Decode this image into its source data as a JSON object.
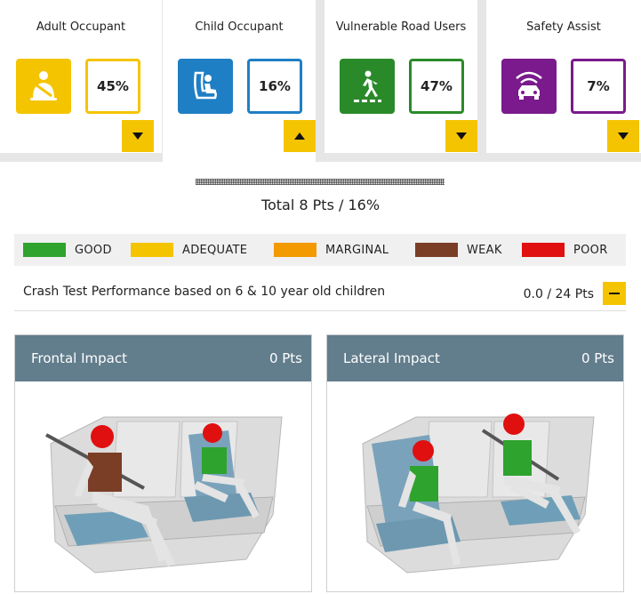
{
  "cards": [
    {
      "title": "Adult Occupant",
      "percent": "45%",
      "color": "#f5c400",
      "icon": "seatbelt-adult-icon",
      "toggle": "expand"
    },
    {
      "title": "Child Occupant",
      "percent": "16%",
      "color": "#1f7fc4",
      "icon": "child-seat-icon",
      "toggle": "collapse"
    },
    {
      "title": "Vulnerable Road Users",
      "percent": "47%",
      "color": "#2a8a2a",
      "icon": "pedestrian-crossing-icon",
      "toggle": "expand"
    },
    {
      "title": "Safety Assist",
      "percent": "7%",
      "color": "#7a1a8c",
      "icon": "car-sensor-icon",
      "toggle": "expand"
    }
  ],
  "summary": {
    "total": "Total 8 Pts / 16%"
  },
  "legend": [
    {
      "label": "GOOD",
      "color": "#2ea32e"
    },
    {
      "label": "ADEQUATE",
      "color": "#f5c400"
    },
    {
      "label": "MARGINAL",
      "color": "#f39a00"
    },
    {
      "label": "WEAK",
      "color": "#7a3e26"
    },
    {
      "label": "POOR",
      "color": "#e01010"
    }
  ],
  "section": {
    "title": "Crash Test Performance based on 6 & 10 year old children",
    "points": "0.0 / 24 Pts"
  },
  "panels": [
    {
      "title": "Frontal Impact",
      "points": "0 Pts"
    },
    {
      "title": "Lateral Impact",
      "points": "0 Pts"
    }
  ]
}
